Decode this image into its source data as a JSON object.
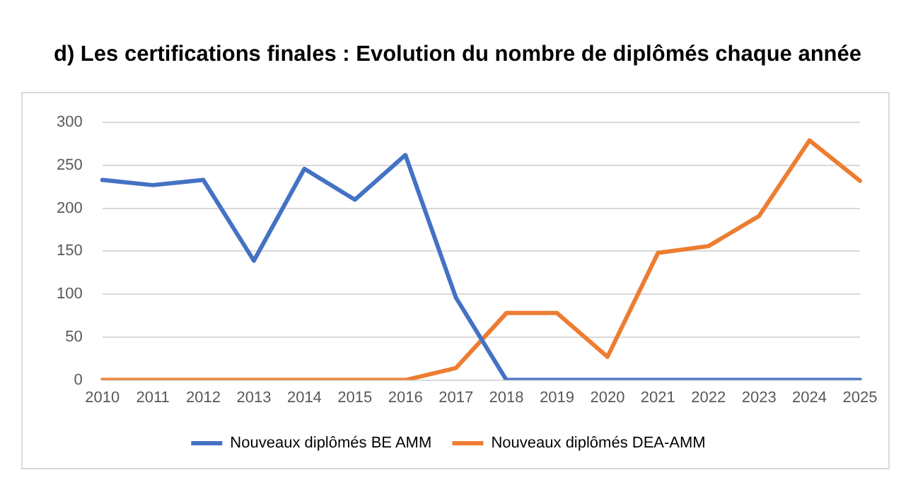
{
  "chart_data": {
    "type": "line",
    "title": "d)  Les certifications finales : Evolution du nombre de diplômés chaque année",
    "categories": [
      "2010",
      "2011",
      "2012",
      "2013",
      "2014",
      "2015",
      "2016",
      "2017",
      "2018",
      "2019",
      "2020",
      "2021",
      "2022",
      "2023",
      "2024",
      "2025"
    ],
    "series": [
      {
        "name": "Nouveaux diplômés BE AMM",
        "color": "#4472c4",
        "values": [
          233,
          227,
          233,
          139,
          246,
          210,
          262,
          96,
          0,
          0,
          0,
          0,
          0,
          0,
          0,
          0
        ]
      },
      {
        "name": "Nouveaux diplômés DEA-AMM",
        "color": "#ed7d31",
        "values": [
          0,
          0,
          0,
          0,
          0,
          0,
          0,
          14,
          78,
          78,
          27,
          148,
          156,
          191,
          279,
          232
        ]
      }
    ],
    "ylim": [
      0,
      300
    ],
    "yticks": [
      0,
      50,
      100,
      150,
      200,
      250,
      300
    ],
    "grid": "y",
    "legend": "bottom",
    "marker": "none",
    "line_style": "solid"
  }
}
